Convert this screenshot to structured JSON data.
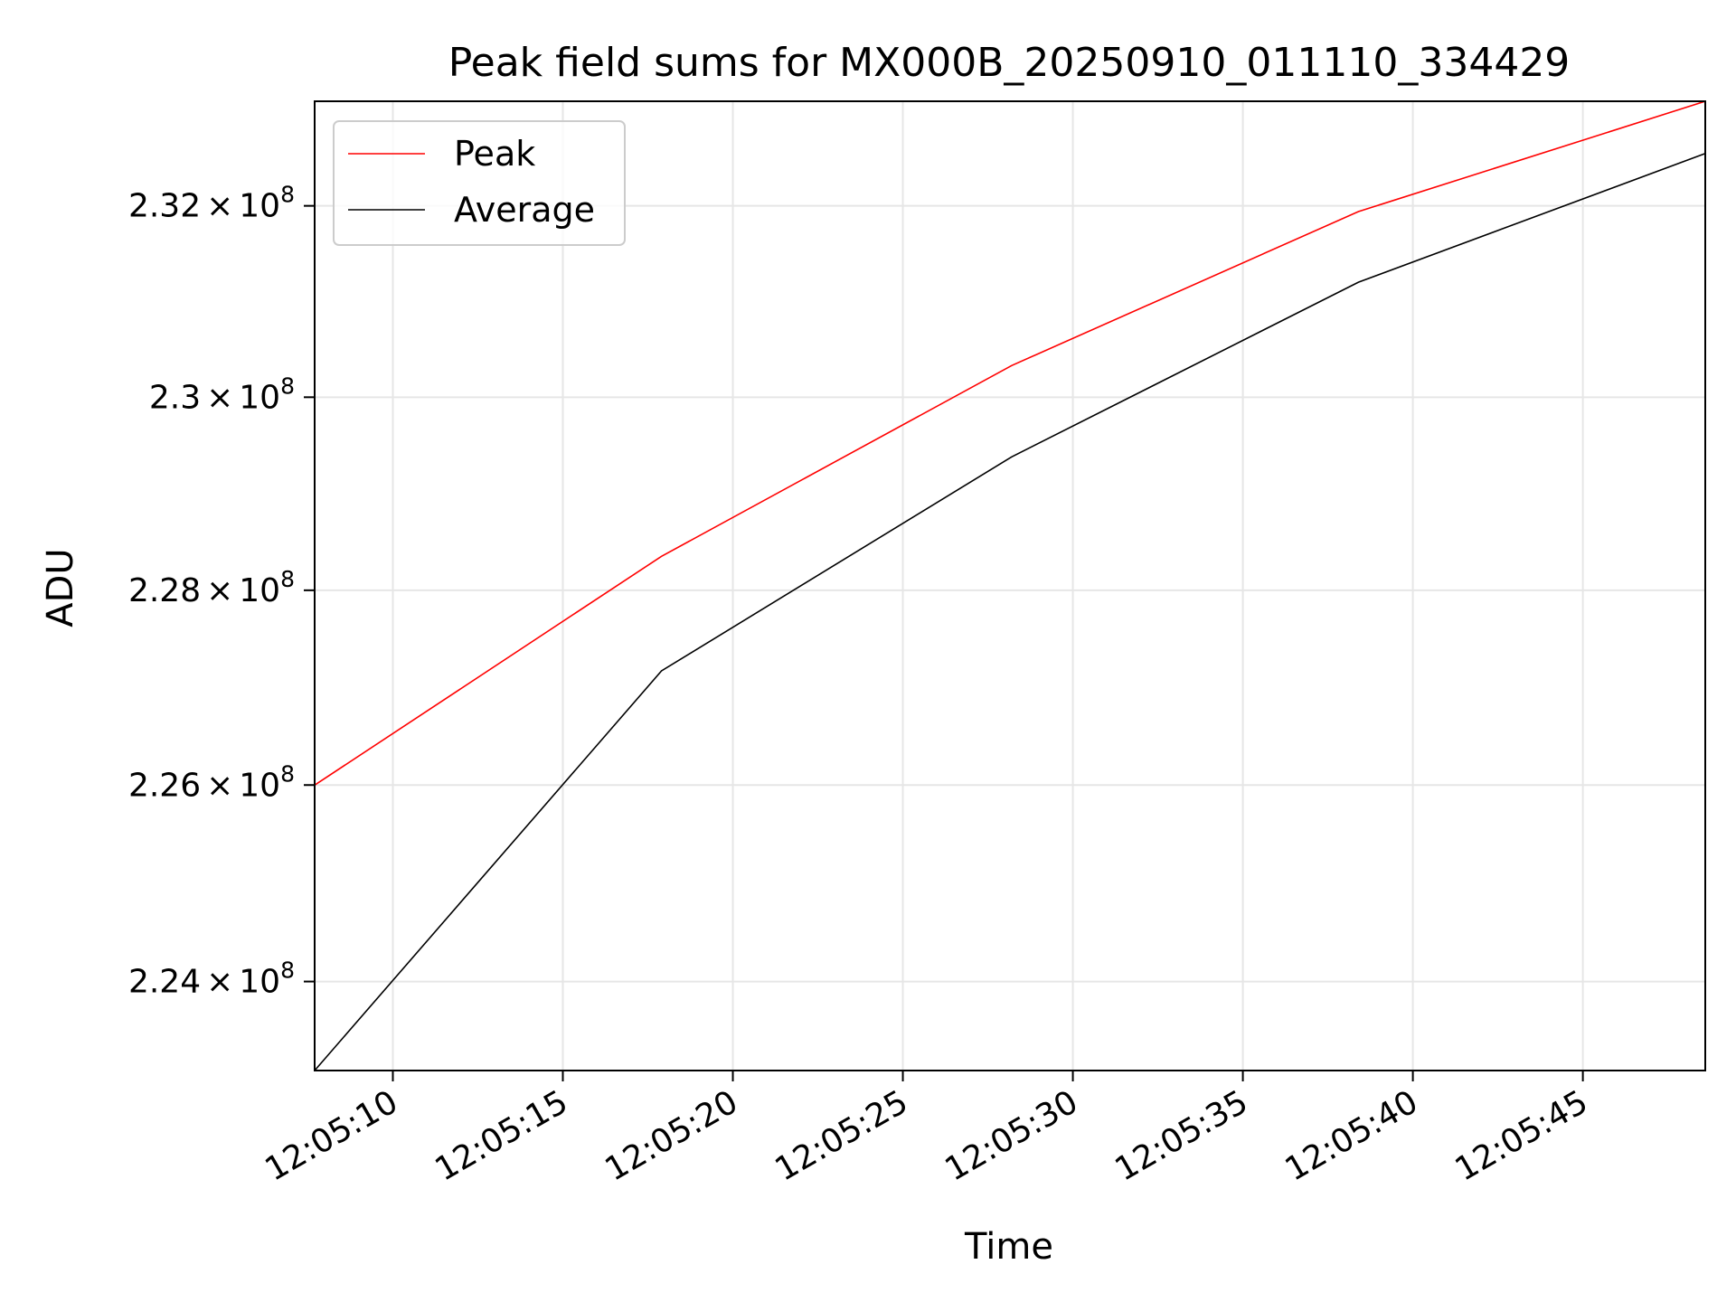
{
  "chart_data": {
    "type": "line",
    "title": "Peak field sums for MX000B_20250910_011110_334429",
    "xlabel": "Time",
    "ylabel": "ADU",
    "x_kind": "time",
    "x": [
      "12:05:07.7",
      "12:05:17.9",
      "12:05:28.2",
      "12:05:38.4",
      "12:05:48.6"
    ],
    "xlim": [
      "12:05:07.7",
      "12:05:48.6"
    ],
    "x_ticks": [
      "12:05:10",
      "12:05:15",
      "12:05:20",
      "12:05:25",
      "12:05:30",
      "12:05:35",
      "12:05:40",
      "12:05:45"
    ],
    "y_scale": "log",
    "ylim": [
      223100000,
      233100000
    ],
    "y_ticks": [
      {
        "value": 224000000,
        "mantissa": "2.24",
        "exponent": "8"
      },
      {
        "value": 226000000,
        "mantissa": "2.26",
        "exponent": "8"
      },
      {
        "value": 228000000,
        "mantissa": "2.28",
        "exponent": "8"
      },
      {
        "value": 230000000,
        "mantissa": "2.3",
        "exponent": "8"
      },
      {
        "value": 232000000,
        "mantissa": "2.32",
        "exponent": "8"
      }
    ],
    "y_tick_times": "×",
    "y_tick_base": "10",
    "grid": true,
    "legend_position": "top-left",
    "series": [
      {
        "name": "Peak",
        "color": "#ff0000",
        "values": [
          226000000,
          228350000,
          230330000,
          231940000,
          233100000
        ]
      },
      {
        "name": "Average",
        "color": "#000000",
        "values": [
          223100000,
          227170000,
          229380000,
          231200000,
          232550000
        ]
      }
    ]
  }
}
